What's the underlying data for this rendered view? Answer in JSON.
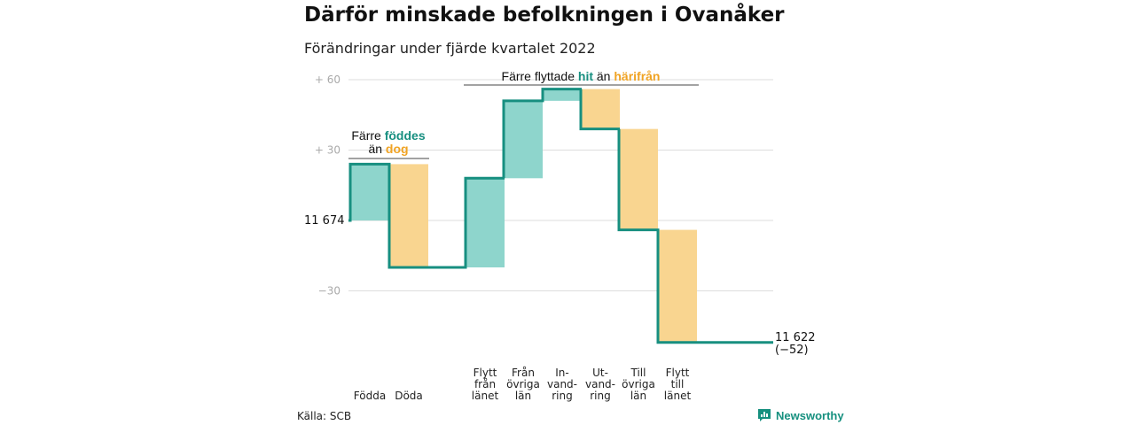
{
  "title": "Därför minskade befolkningen i Ovanåker",
  "subtitle": "Förändringar under fjärde kvartalet 2022",
  "source": "Källa: SCB",
  "brand": "Newsworthy",
  "colors": {
    "increase": "#8ed5cc",
    "decrease": "#f9d590",
    "line": "#178f80",
    "accent_teal": "#178f80",
    "accent_orange": "#f0a323",
    "grid": "#dddddd"
  },
  "annotations": {
    "birth_death": {
      "line1_prefix": "Färre ",
      "line1_highlight": "föddes",
      "line2_prefix": "än ",
      "line2_highlight": "dog"
    },
    "migration": {
      "prefix": "Färre flyttade ",
      "highlight1": "hit",
      "middle": " än ",
      "highlight2": "härifrån"
    }
  },
  "chart_data": {
    "type": "waterfall",
    "title": "Därför minskade befolkningen i Ovanåker",
    "subtitle": "Förändringar under fjärde kvartalet 2022",
    "start": {
      "label": "11 674",
      "value": 11674
    },
    "end": {
      "label": "11 622",
      "sublabel": "(−52)",
      "value": 11622,
      "change": -52
    },
    "y_ticks": [
      {
        "value": 60,
        "label": "+ 60"
      },
      {
        "value": 30,
        "label": "+ 30"
      },
      {
        "value": -30,
        "label": "−30"
      }
    ],
    "ylim": [
      -45,
      60
    ],
    "categories": [
      {
        "label": [
          "Födda"
        ],
        "change": 24
      },
      {
        "label": [
          "Döda"
        ],
        "change": -44
      },
      {
        "label": [
          "Flytt",
          "från",
          "länet"
        ],
        "change": 38
      },
      {
        "label": [
          "Från",
          "övriga",
          "län"
        ],
        "change": 33
      },
      {
        "label": [
          "In-",
          "vand-",
          "ring"
        ],
        "change": 5
      },
      {
        "label": [
          "Ut-",
          "vand-",
          "ring"
        ],
        "change": -17
      },
      {
        "label": [
          "Till",
          "övriga",
          "län"
        ],
        "change": -43
      },
      {
        "label": [
          "Flytt",
          "till",
          "länet"
        ],
        "change": -48
      }
    ]
  }
}
